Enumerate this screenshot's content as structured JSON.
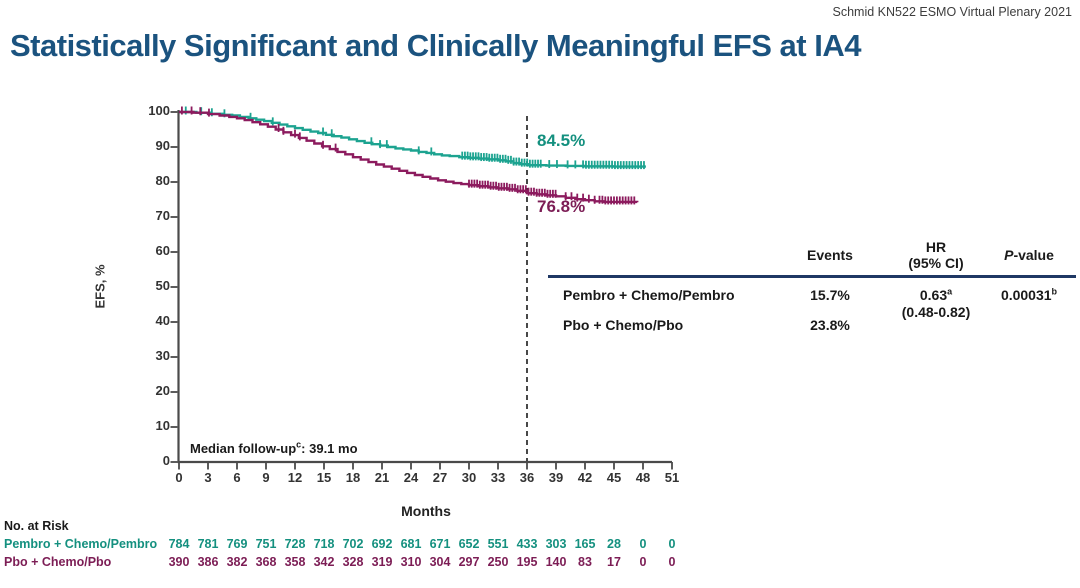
{
  "attribution": "Schmid KN522 ESMO Virtual Plenary 2021",
  "title": "Statistically Significant and Clinically Meaningful EFS at IA4",
  "colors": {
    "title": "#1B537F",
    "teal_text": "#14907F",
    "teal_curve": "#1CA390",
    "maroon_text": "#7C1D55",
    "maroon_curve": "#8C1B5E",
    "table_rule": "#1F3864",
    "axis": "#4a4a4a"
  },
  "chart_data": {
    "type": "line",
    "subtype": "kaplan-meier-step",
    "xlabel": "Months",
    "ylabel": "EFS, %",
    "xlim": [
      0,
      51
    ],
    "ylim": [
      0,
      100
    ],
    "x_ticks": [
      0,
      3,
      6,
      9,
      12,
      15,
      18,
      21,
      24,
      27,
      30,
      33,
      36,
      39,
      42,
      45,
      48,
      51
    ],
    "y_ticks": [
      0,
      10,
      20,
      30,
      40,
      50,
      60,
      70,
      80,
      90,
      100
    ],
    "reference_line_month": 36,
    "grid": false,
    "annotation": {
      "label": "Median follow-up",
      "sup": "c",
      "rest": ":  39.1 mo"
    },
    "series": [
      {
        "name": "Pembro + Chemo/Pembro",
        "landmark_label": "84.5%",
        "landmark_month": 36,
        "points": [
          [
            0,
            100
          ],
          [
            1.8,
            99.8
          ],
          [
            3.2,
            99.5
          ],
          [
            4.5,
            99.2
          ],
          [
            5.5,
            99.0
          ],
          [
            6.3,
            98.6
          ],
          [
            7.2,
            98.2
          ],
          [
            8.0,
            97.8
          ],
          [
            8.8,
            97.4
          ],
          [
            9.6,
            96.9
          ],
          [
            10.4,
            96.4
          ],
          [
            11.2,
            95.9
          ],
          [
            12.0,
            95.4
          ],
          [
            12.8,
            94.9
          ],
          [
            13.6,
            94.4
          ],
          [
            14.4,
            94.0
          ],
          [
            15.2,
            93.5
          ],
          [
            16.0,
            93.1
          ],
          [
            16.8,
            92.7
          ],
          [
            17.6,
            92.2
          ],
          [
            18.4,
            91.7
          ],
          [
            19.2,
            91.2
          ],
          [
            20.0,
            90.8
          ],
          [
            20.8,
            90.4
          ],
          [
            21.6,
            90.0
          ],
          [
            22.4,
            89.6
          ],
          [
            23.2,
            89.3
          ],
          [
            24.0,
            89.0
          ],
          [
            24.8,
            88.6
          ],
          [
            25.6,
            88.3
          ],
          [
            26.4,
            87.9
          ],
          [
            27.2,
            87.6
          ],
          [
            28.0,
            87.4
          ],
          [
            29.0,
            87.1
          ],
          [
            30.0,
            86.9
          ],
          [
            31.0,
            86.7
          ],
          [
            32.0,
            86.5
          ],
          [
            33.0,
            86.2
          ],
          [
            33.8,
            85.9
          ],
          [
            34.6,
            85.4
          ],
          [
            35.4,
            85.1
          ],
          [
            36.2,
            84.8
          ],
          [
            38.0,
            84.7
          ],
          [
            40.0,
            84.6
          ],
          [
            42.0,
            84.5
          ],
          [
            45.0,
            84.4
          ],
          [
            48.3,
            84.4
          ]
        ],
        "censor_singles": [
          0.7,
          2.3,
          3.4,
          4.7,
          7.4,
          9.7,
          14.9,
          15.8,
          19.9,
          20.8,
          21.5,
          24.8,
          26.1,
          38.3,
          39.1,
          40.2,
          41.0
        ],
        "censor_bands": [
          [
            29.3,
            37.6,
            0.28
          ],
          [
            41.8,
            48.2,
            0.3
          ]
        ]
      },
      {
        "name": "Pbo + Chemo/Pbo",
        "landmark_label": "76.8%",
        "landmark_month": 36,
        "points": [
          [
            0,
            100
          ],
          [
            1.5,
            99.8
          ],
          [
            3.0,
            99.4
          ],
          [
            4.2,
            99.0
          ],
          [
            5.2,
            98.6
          ],
          [
            6.0,
            98.2
          ],
          [
            6.8,
            97.7
          ],
          [
            7.6,
            97.1
          ],
          [
            8.4,
            96.5
          ],
          [
            9.2,
            95.8
          ],
          [
            10.0,
            95.0
          ],
          [
            10.8,
            94.2
          ],
          [
            11.6,
            93.4
          ],
          [
            12.4,
            92.6
          ],
          [
            13.2,
            91.8
          ],
          [
            14.0,
            91.0
          ],
          [
            14.8,
            90.2
          ],
          [
            15.6,
            89.4
          ],
          [
            16.4,
            88.6
          ],
          [
            17.2,
            87.9
          ],
          [
            18.0,
            87.1
          ],
          [
            18.8,
            86.4
          ],
          [
            19.6,
            85.7
          ],
          [
            20.4,
            85.0
          ],
          [
            21.2,
            84.4
          ],
          [
            22.0,
            83.8
          ],
          [
            22.8,
            83.2
          ],
          [
            23.6,
            82.6
          ],
          [
            24.4,
            82.0
          ],
          [
            25.2,
            81.5
          ],
          [
            26.0,
            81.0
          ],
          [
            26.8,
            80.5
          ],
          [
            27.6,
            80.1
          ],
          [
            28.4,
            79.7
          ],
          [
            29.2,
            79.4
          ],
          [
            30.0,
            79.1
          ],
          [
            31.0,
            78.8
          ],
          [
            32.0,
            78.5
          ],
          [
            33.0,
            78.2
          ],
          [
            34.0,
            77.9
          ],
          [
            35.0,
            77.5
          ],
          [
            36.0,
            76.8
          ],
          [
            37.0,
            76.5
          ],
          [
            38.0,
            76.2
          ],
          [
            39.0,
            75.9
          ],
          [
            40.0,
            75.5
          ],
          [
            41.0,
            75.1
          ],
          [
            42.0,
            74.8
          ],
          [
            43.0,
            74.5
          ],
          [
            44.0,
            74.3
          ],
          [
            47.4,
            74.2
          ]
        ],
        "censor_singles": [
          0.3,
          1.3,
          2.2,
          3.1,
          10.3,
          10.8,
          12.0,
          12.5,
          14.9,
          16.2
        ],
        "censor_bands": [
          [
            30.0,
            39.0,
            0.28
          ],
          [
            40.0,
            43.0,
            0.6
          ],
          [
            43.5,
            47.3,
            0.3
          ]
        ]
      }
    ]
  },
  "results_table": {
    "headers": {
      "events": "Events",
      "hr_line1": "HR",
      "hr_line2": "(95% CI)",
      "p_italic": "P",
      "p_rest": "-value"
    },
    "rows": [
      {
        "label": "Pembro + Chemo/Pembro",
        "events": "15.7%",
        "hr": "0.63",
        "hr_sup": "a",
        "hr_ci": "(0.48-0.82)",
        "p": "0.00031",
        "p_sup": "b"
      },
      {
        "label": "Pbo + Chemo/Pbo",
        "events": "23.8%"
      }
    ]
  },
  "risk_table": {
    "title": "No. at Risk",
    "months": [
      0,
      3,
      6,
      9,
      12,
      15,
      18,
      21,
      24,
      27,
      30,
      33,
      36,
      39,
      42,
      45,
      48,
      51
    ],
    "rows": [
      {
        "label": "Pembro + Chemo/Pembro",
        "color": "teal",
        "values": [
          784,
          781,
          769,
          751,
          728,
          718,
          702,
          692,
          681,
          671,
          652,
          551,
          433,
          303,
          165,
          28,
          0,
          0
        ]
      },
      {
        "label": "Pbo + Chemo/Pbo",
        "color": "maroon",
        "values": [
          390,
          386,
          382,
          368,
          358,
          342,
          328,
          319,
          310,
          304,
          297,
          250,
          195,
          140,
          83,
          17,
          0,
          0
        ]
      }
    ]
  }
}
